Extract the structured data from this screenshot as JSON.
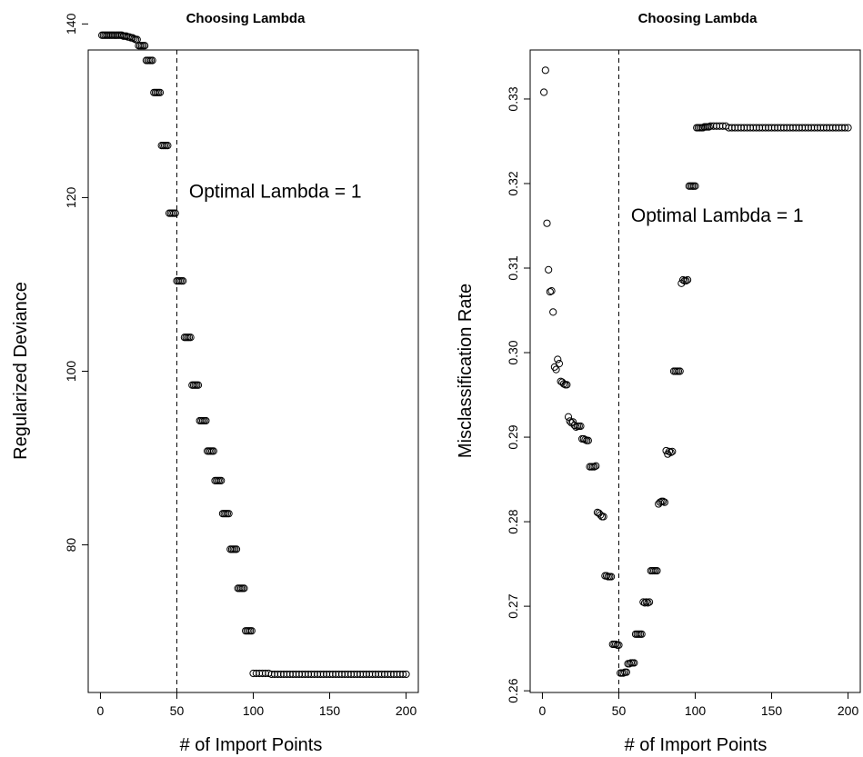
{
  "chart_data": [
    {
      "type": "scatter",
      "title": "Choosing Lambda",
      "xlabel": "# of Import Points",
      "ylabel": "Regularized Deviance",
      "xlim": [
        -8,
        208
      ],
      "ylim": [
        63,
        137
      ],
      "xticks": [
        0,
        50,
        100,
        150,
        200
      ],
      "yticks": [
        80,
        100,
        120,
        140
      ],
      "grid": false,
      "vline": 50,
      "annotation": {
        "text": "Optimal Lambda = 1",
        "x": 58,
        "y": 120
      },
      "points": [
        [
          1,
          138.7
        ],
        [
          2,
          138.7
        ],
        [
          3,
          138.7
        ],
        [
          4,
          138.7
        ],
        [
          5,
          138.7
        ],
        [
          6,
          138.7
        ],
        [
          7,
          138.7
        ],
        [
          8,
          138.7
        ],
        [
          9,
          138.7
        ],
        [
          10,
          138.7
        ],
        [
          11,
          138.7
        ],
        [
          12,
          138.7
        ],
        [
          13,
          138.7
        ],
        [
          14,
          138.7
        ],
        [
          15,
          138.6
        ],
        [
          16,
          138.6
        ],
        [
          17,
          138.6
        ],
        [
          18,
          138.5
        ],
        [
          19,
          138.5
        ],
        [
          20,
          138.4
        ],
        [
          21,
          138.4
        ],
        [
          22,
          138.3
        ],
        [
          23,
          138.2
        ],
        [
          24,
          138.2
        ],
        [
          25,
          137.5
        ],
        [
          26,
          137.5
        ],
        [
          27,
          137.5
        ],
        [
          28,
          137.5
        ],
        [
          29,
          137.5
        ],
        [
          30,
          135.8
        ],
        [
          31,
          135.8
        ],
        [
          32,
          135.8
        ],
        [
          33,
          135.8
        ],
        [
          34,
          135.8
        ],
        [
          35,
          132.1
        ],
        [
          36,
          132.1
        ],
        [
          37,
          132.1
        ],
        [
          38,
          132.1
        ],
        [
          39,
          132.1
        ],
        [
          40,
          126.0
        ],
        [
          41,
          126.0
        ],
        [
          42,
          126.0
        ],
        [
          43,
          126.0
        ],
        [
          44,
          126.0
        ],
        [
          45,
          118.2
        ],
        [
          46,
          118.2
        ],
        [
          47,
          118.2
        ],
        [
          48,
          118.2
        ],
        [
          49,
          118.2
        ],
        [
          50,
          110.4
        ],
        [
          51,
          110.4
        ],
        [
          52,
          110.4
        ],
        [
          53,
          110.4
        ],
        [
          54,
          110.4
        ],
        [
          55,
          103.9
        ],
        [
          56,
          103.9
        ],
        [
          57,
          103.9
        ],
        [
          58,
          103.9
        ],
        [
          59,
          103.9
        ],
        [
          60,
          98.4
        ],
        [
          61,
          98.4
        ],
        [
          62,
          98.4
        ],
        [
          63,
          98.4
        ],
        [
          64,
          98.4
        ],
        [
          65,
          94.3
        ],
        [
          66,
          94.3
        ],
        [
          67,
          94.3
        ],
        [
          68,
          94.3
        ],
        [
          69,
          94.3
        ],
        [
          70,
          90.8
        ],
        [
          71,
          90.8
        ],
        [
          72,
          90.8
        ],
        [
          73,
          90.8
        ],
        [
          74,
          90.8
        ],
        [
          75,
          87.4
        ],
        [
          76,
          87.4
        ],
        [
          77,
          87.4
        ],
        [
          78,
          87.4
        ],
        [
          79,
          87.4
        ],
        [
          80,
          83.6
        ],
        [
          81,
          83.6
        ],
        [
          82,
          83.6
        ],
        [
          83,
          83.6
        ],
        [
          84,
          83.6
        ],
        [
          85,
          79.5
        ],
        [
          86,
          79.5
        ],
        [
          87,
          79.5
        ],
        [
          88,
          79.5
        ],
        [
          89,
          79.5
        ],
        [
          90,
          75.0
        ],
        [
          91,
          75.0
        ],
        [
          92,
          75.0
        ],
        [
          93,
          75.0
        ],
        [
          94,
          75.0
        ],
        [
          95,
          70.1
        ],
        [
          96,
          70.1
        ],
        [
          97,
          70.1
        ],
        [
          98,
          70.1
        ],
        [
          99,
          70.1
        ],
        [
          100,
          65.2
        ],
        [
          102,
          65.2
        ],
        [
          104,
          65.2
        ],
        [
          106,
          65.2
        ],
        [
          108,
          65.2
        ],
        [
          110,
          65.2
        ],
        [
          112,
          65.1
        ],
        [
          114,
          65.1
        ],
        [
          116,
          65.1
        ],
        [
          118,
          65.1
        ],
        [
          120,
          65.1
        ],
        [
          122,
          65.1
        ],
        [
          124,
          65.1
        ],
        [
          126,
          65.1
        ],
        [
          128,
          65.1
        ],
        [
          130,
          65.1
        ],
        [
          132,
          65.1
        ],
        [
          134,
          65.1
        ],
        [
          136,
          65.1
        ],
        [
          138,
          65.1
        ],
        [
          140,
          65.1
        ],
        [
          142,
          65.1
        ],
        [
          144,
          65.1
        ],
        [
          146,
          65.1
        ],
        [
          148,
          65.1
        ],
        [
          150,
          65.1
        ],
        [
          152,
          65.1
        ],
        [
          154,
          65.1
        ],
        [
          156,
          65.1
        ],
        [
          158,
          65.1
        ],
        [
          160,
          65.1
        ],
        [
          162,
          65.1
        ],
        [
          164,
          65.1
        ],
        [
          166,
          65.1
        ],
        [
          168,
          65.1
        ],
        [
          170,
          65.1
        ],
        [
          172,
          65.1
        ],
        [
          174,
          65.1
        ],
        [
          176,
          65.1
        ],
        [
          178,
          65.1
        ],
        [
          180,
          65.1
        ],
        [
          182,
          65.1
        ],
        [
          184,
          65.1
        ],
        [
          186,
          65.1
        ],
        [
          188,
          65.1
        ],
        [
          190,
          65.1
        ],
        [
          192,
          65.1
        ],
        [
          194,
          65.1
        ],
        [
          196,
          65.1
        ],
        [
          198,
          65.1
        ],
        [
          200,
          65.1
        ]
      ]
    },
    {
      "type": "scatter",
      "title": "Choosing Lambda",
      "xlabel": "# of Import Points",
      "ylabel": "Misclassification Rate",
      "xlim": [
        -8,
        208
      ],
      "ylim": [
        0.2598,
        0.3358
      ],
      "xticks": [
        0,
        50,
        100,
        150,
        200
      ],
      "yticks": [
        0.26,
        0.27,
        0.28,
        0.29,
        0.3,
        0.31,
        0.32,
        0.33
      ],
      "grid": false,
      "vline": 50,
      "annotation": {
        "text": "Optimal Lambda = 1",
        "x": 58,
        "y": 0.3155
      },
      "points": [
        [
          1,
          0.3308
        ],
        [
          2,
          0.3334
        ],
        [
          3,
          0.3153
        ],
        [
          4,
          0.3098
        ],
        [
          5,
          0.3072
        ],
        [
          6,
          0.3073
        ],
        [
          7,
          0.3048
        ],
        [
          8,
          0.2983
        ],
        [
          9,
          0.298
        ],
        [
          10,
          0.2992
        ],
        [
          11,
          0.2987
        ],
        [
          12,
          0.2966
        ],
        [
          13,
          0.2965
        ],
        [
          14,
          0.2963
        ],
        [
          15,
          0.2962
        ],
        [
          16,
          0.2962
        ],
        [
          17,
          0.2924
        ],
        [
          18,
          0.2919
        ],
        [
          19,
          0.2917
        ],
        [
          20,
          0.2918
        ],
        [
          21,
          0.2914
        ],
        [
          22,
          0.2912
        ],
        [
          23,
          0.2913
        ],
        [
          24,
          0.2913
        ],
        [
          25,
          0.2913
        ],
        [
          26,
          0.2898
        ],
        [
          27,
          0.2898
        ],
        [
          28,
          0.2897
        ],
        [
          29,
          0.2896
        ],
        [
          30,
          0.2896
        ],
        [
          31,
          0.2865
        ],
        [
          32,
          0.2865
        ],
        [
          33,
          0.2865
        ],
        [
          34,
          0.2865
        ],
        [
          35,
          0.2866
        ],
        [
          36,
          0.2811
        ],
        [
          37,
          0.281
        ],
        [
          38,
          0.2808
        ],
        [
          39,
          0.2806
        ],
        [
          40,
          0.2806
        ],
        [
          41,
          0.2736
        ],
        [
          42,
          0.2736
        ],
        [
          43,
          0.2735
        ],
        [
          44,
          0.2735
        ],
        [
          45,
          0.2735
        ],
        [
          46,
          0.2655
        ],
        [
          47,
          0.2655
        ],
        [
          48,
          0.2655
        ],
        [
          49,
          0.2654
        ],
        [
          50,
          0.2654
        ],
        [
          51,
          0.2621
        ],
        [
          52,
          0.2621
        ],
        [
          53,
          0.2621
        ],
        [
          54,
          0.2622
        ],
        [
          55,
          0.2622
        ],
        [
          56,
          0.2632
        ],
        [
          57,
          0.2632
        ],
        [
          58,
          0.2633
        ],
        [
          59,
          0.2633
        ],
        [
          60,
          0.2633
        ],
        [
          61,
          0.2667
        ],
        [
          62,
          0.2667
        ],
        [
          63,
          0.2667
        ],
        [
          64,
          0.2667
        ],
        [
          65,
          0.2667
        ],
        [
          66,
          0.2705
        ],
        [
          67,
          0.2704
        ],
        [
          68,
          0.2705
        ],
        [
          69,
          0.2704
        ],
        [
          70,
          0.2705
        ],
        [
          71,
          0.2742
        ],
        [
          72,
          0.2742
        ],
        [
          73,
          0.2742
        ],
        [
          74,
          0.2742
        ],
        [
          75,
          0.2742
        ],
        [
          76,
          0.2821
        ],
        [
          77,
          0.2823
        ],
        [
          78,
          0.2824
        ],
        [
          79,
          0.2824
        ],
        [
          80,
          0.2823
        ],
        [
          81,
          0.2884
        ],
        [
          82,
          0.288
        ],
        [
          83,
          0.2883
        ],
        [
          84,
          0.2882
        ],
        [
          85,
          0.2883
        ],
        [
          86,
          0.2978
        ],
        [
          87,
          0.2978
        ],
        [
          88,
          0.2978
        ],
        [
          89,
          0.2978
        ],
        [
          90,
          0.2978
        ],
        [
          91,
          0.3082
        ],
        [
          92,
          0.3086
        ],
        [
          93,
          0.3085
        ],
        [
          94,
          0.3085
        ],
        [
          95,
          0.3086
        ],
        [
          96,
          0.3197
        ],
        [
          97,
          0.3197
        ],
        [
          98,
          0.3197
        ],
        [
          99,
          0.3197
        ],
        [
          100,
          0.3197
        ],
        [
          101,
          0.3266
        ],
        [
          102,
          0.3266
        ],
        [
          103,
          0.3266
        ],
        [
          104,
          0.3266
        ],
        [
          105,
          0.3266
        ],
        [
          106,
          0.3267
        ],
        [
          107,
          0.3267
        ],
        [
          108,
          0.3267
        ],
        [
          109,
          0.3267
        ],
        [
          110,
          0.3268
        ],
        [
          112,
          0.3268
        ],
        [
          114,
          0.3268
        ],
        [
          116,
          0.3268
        ],
        [
          118,
          0.3268
        ],
        [
          120,
          0.3268
        ],
        [
          122,
          0.3266
        ],
        [
          124,
          0.3266
        ],
        [
          126,
          0.3266
        ],
        [
          128,
          0.3266
        ],
        [
          130,
          0.3266
        ],
        [
          132,
          0.3266
        ],
        [
          134,
          0.3266
        ],
        [
          136,
          0.3266
        ],
        [
          138,
          0.3266
        ],
        [
          140,
          0.3266
        ],
        [
          142,
          0.3266
        ],
        [
          144,
          0.3266
        ],
        [
          146,
          0.3266
        ],
        [
          148,
          0.3266
        ],
        [
          150,
          0.3266
        ],
        [
          152,
          0.3266
        ],
        [
          154,
          0.3266
        ],
        [
          156,
          0.3266
        ],
        [
          158,
          0.3266
        ],
        [
          160,
          0.3266
        ],
        [
          162,
          0.3266
        ],
        [
          164,
          0.3266
        ],
        [
          166,
          0.3266
        ],
        [
          168,
          0.3266
        ],
        [
          170,
          0.3266
        ],
        [
          172,
          0.3266
        ],
        [
          174,
          0.3266
        ],
        [
          176,
          0.3266
        ],
        [
          178,
          0.3266
        ],
        [
          180,
          0.3266
        ],
        [
          182,
          0.3266
        ],
        [
          184,
          0.3266
        ],
        [
          186,
          0.3266
        ],
        [
          188,
          0.3266
        ],
        [
          190,
          0.3266
        ],
        [
          192,
          0.3266
        ],
        [
          194,
          0.3266
        ],
        [
          196,
          0.3266
        ],
        [
          198,
          0.3266
        ],
        [
          200,
          0.3266
        ]
      ]
    }
  ]
}
